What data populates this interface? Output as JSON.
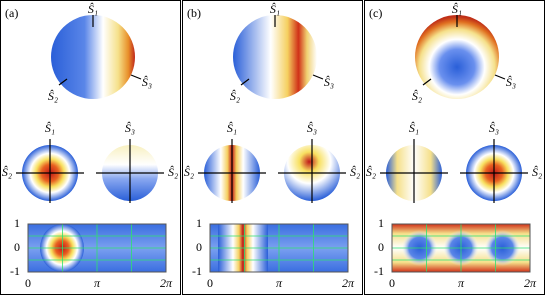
{
  "panels": [
    {
      "label": "(a)"
    },
    {
      "label": "(b)"
    },
    {
      "label": "(c)"
    }
  ],
  "axis_labels": {
    "s1": "Ŝ₁",
    "s2": "Ŝ₂",
    "s3": "Ŝ₃"
  },
  "heatmap": {
    "yticks": [
      "1",
      "0",
      "-1"
    ],
    "xticks": [
      "0",
      "π",
      "2π"
    ]
  }
}
